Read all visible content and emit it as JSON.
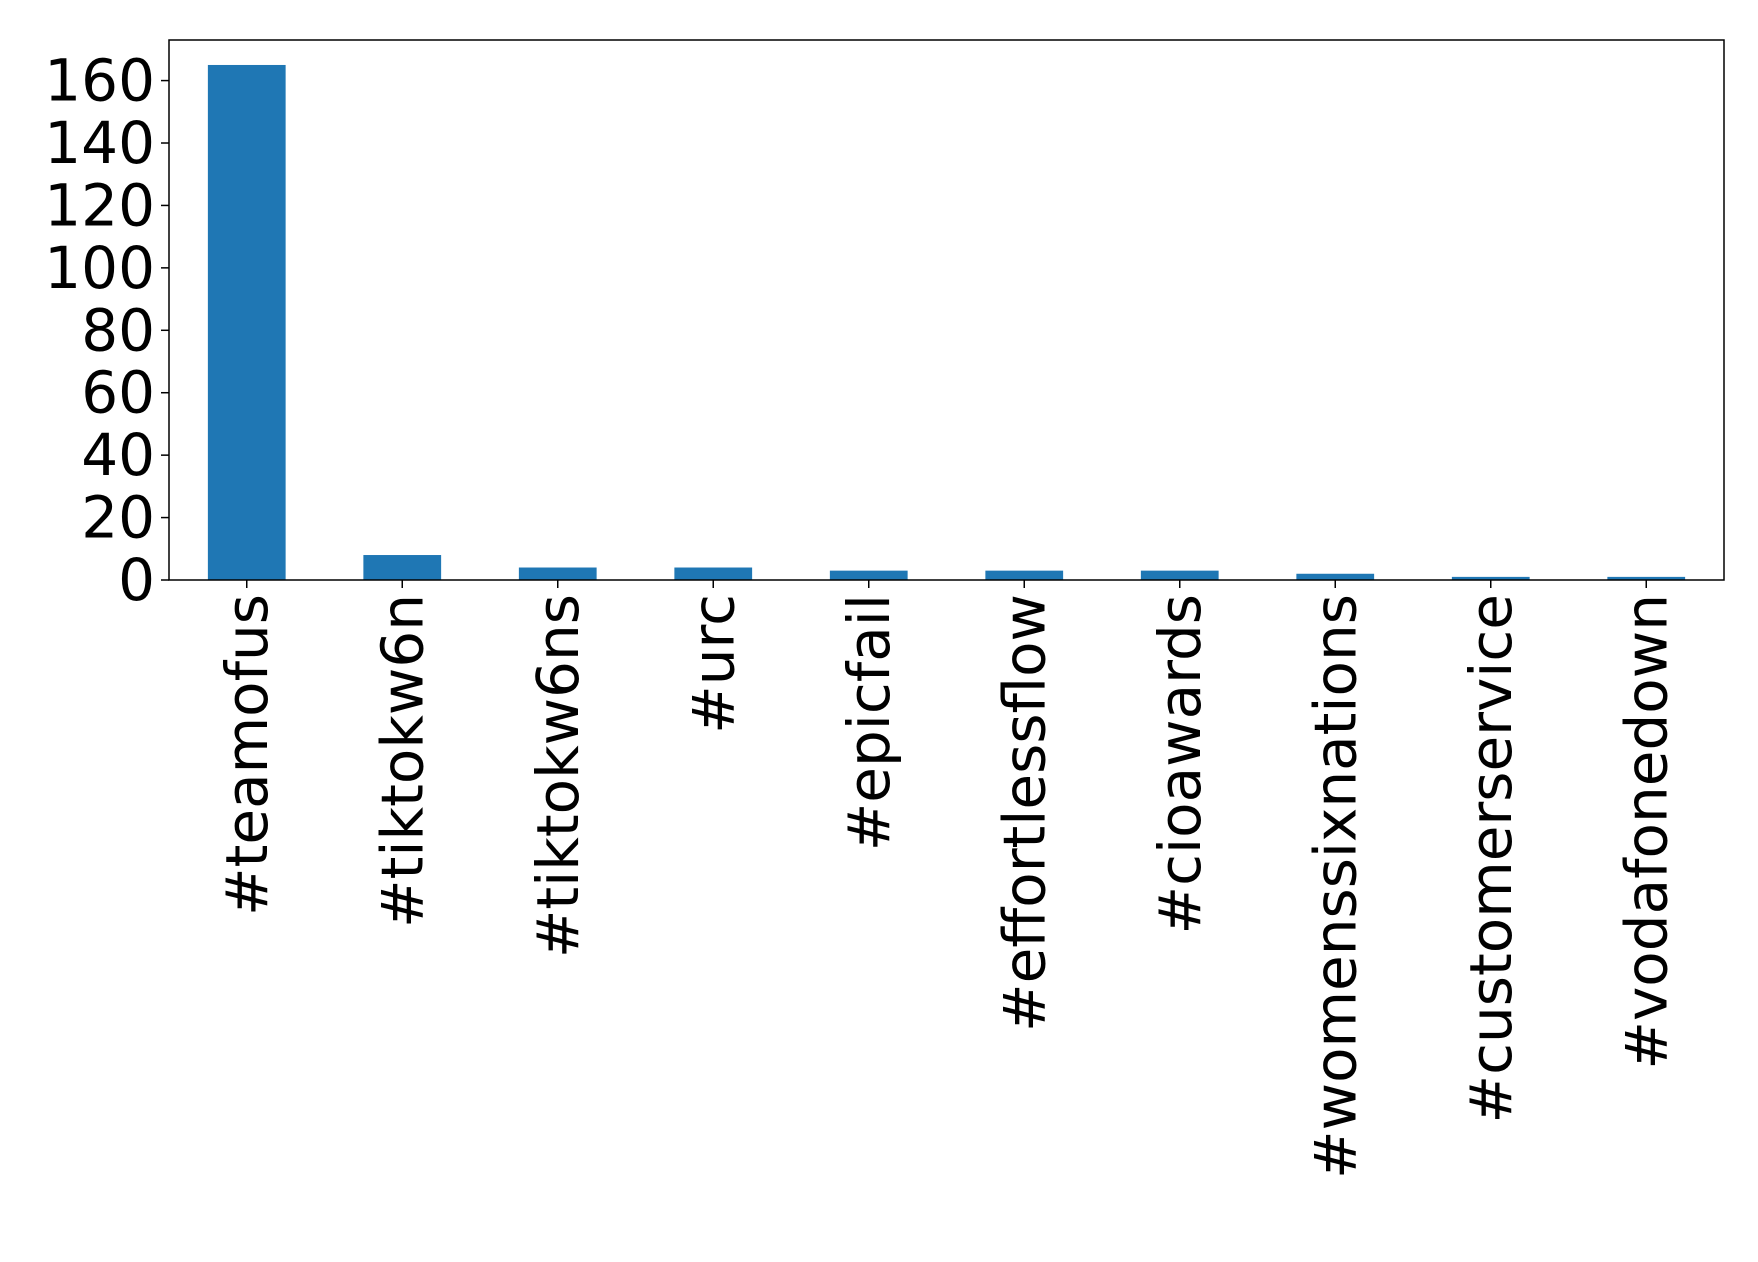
{
  "chart_data": {
    "type": "bar",
    "title": "",
    "xlabel": "",
    "ylabel": "",
    "categories": [
      "#teamofus",
      "#tiktokw6n",
      "#tiktokw6ns",
      "#urc",
      "#epicfail",
      "#effortlessflow",
      "#cioawards",
      "#womenssixnations",
      "#customerservice",
      "#vodafonedown"
    ],
    "values": [
      165,
      8,
      4,
      4,
      3,
      3,
      3,
      2,
      1,
      1
    ],
    "ylim": [
      0,
      173
    ],
    "yticks": [
      "0",
      "20",
      "40",
      "60",
      "80",
      "100",
      "120",
      "140",
      "160"
    ],
    "grid": false,
    "legend": "none",
    "bar_color": "#1f77b4"
  }
}
